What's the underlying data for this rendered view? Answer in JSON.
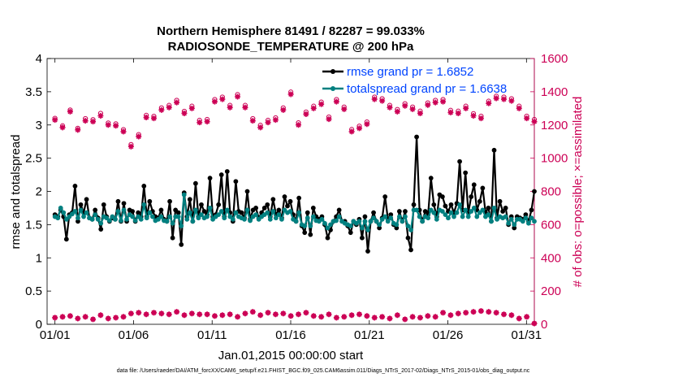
{
  "chart_data": {
    "type": "line",
    "title_line1": "Northern Hemisphere 81491 / 82287 = 99.033%",
    "title_line2": "RADIOSONDE_TEMPERATURE @ 200 hPa",
    "xlabel": "Jan.01,2015 00:00:00 start",
    "ylabel_left": "rmse and totalspread",
    "ylabel_right": "# of obs: o=possible; ×=assimilated",
    "footer": "data file: /Users/raeder/DAI/ATM_forcXX/CAM6_setup/f.e21.FHIST_BGC.f09_025.CAM6assim.011/Diags_NTrS_2017-02/Diags_NTrS_2015-01/obs_diag_output.nc",
    "xlim": [
      0.5,
      31.5
    ],
    "ylim_left": [
      0,
      4
    ],
    "ylim_right": [
      0,
      1600
    ],
    "x_ticks": [
      1,
      6,
      11,
      16,
      21,
      26,
      31
    ],
    "x_tick_labels": [
      "01/01",
      "01/06",
      "01/11",
      "01/16",
      "01/21",
      "01/26",
      "01/31"
    ],
    "y_left_ticks": [
      "0",
      "0.5",
      "1",
      "1.5",
      "2",
      "2.5",
      "3",
      "3.5",
      "4"
    ],
    "y_right_ticks": [
      "0",
      "200",
      "400",
      "600",
      "800",
      "1000",
      "1200",
      "1400",
      "1600"
    ],
    "colors": {
      "rmse": "#000000",
      "spread": "#008080",
      "obs": "#cc0055",
      "legend_text": "#0044ff"
    },
    "legend": [
      {
        "label": "rmse grand pr = 1.6852",
        "series": "rmse"
      },
      {
        "label": "totalspread grand pr = 1.6638",
        "series": "spread"
      }
    ],
    "series": [
      {
        "name": "rmse",
        "values": [
          1.65,
          1.62,
          1.72,
          1.62,
          1.28,
          1.65,
          1.68,
          2.08,
          1.55,
          1.8,
          1.68,
          1.88,
          1.6,
          1.58,
          1.72,
          1.6,
          1.43,
          1.8,
          1.62,
          1.55,
          1.6,
          1.58,
          1.85,
          1.55,
          1.82,
          1.55,
          1.72,
          1.7,
          1.55,
          1.68,
          1.62,
          2.08,
          1.62,
          1.85,
          1.7,
          1.62,
          1.6,
          1.72,
          1.58,
          1.55,
          1.85,
          1.3,
          1.72,
          1.68,
          1.2,
          1.98,
          1.62,
          1.88,
          1.55,
          2.12,
          1.62,
          1.8,
          1.7,
          1.65,
          2.2,
          1.62,
          1.65,
          1.8,
          2.25,
          1.62,
          2.3,
          1.68,
          1.55,
          2.15,
          1.7,
          1.68,
          1.6,
          2.0,
          1.58,
          1.72,
          1.75,
          1.6,
          1.68,
          1.75,
          1.8,
          1.62,
          1.88,
          1.65,
          1.72,
          1.6,
          1.92,
          1.78,
          1.85,
          1.65,
          1.55,
          1.9,
          1.48,
          1.38,
          1.68,
          1.35,
          1.75,
          1.62,
          1.58,
          1.62,
          1.5,
          1.3,
          1.42,
          1.55,
          1.62,
          1.72,
          1.55,
          1.55,
          1.48,
          1.38,
          1.55,
          1.5,
          1.58,
          1.3,
          1.62,
          1.1,
          1.55,
          1.68,
          1.55,
          1.45,
          1.6,
          1.92,
          1.58,
          1.65,
          1.5,
          1.45,
          1.7,
          1.55,
          1.7,
          1.3,
          1.12,
          1.8,
          2.82,
          1.72,
          1.55,
          1.7,
          1.65,
          2.2,
          1.8,
          1.62,
          1.95,
          1.92,
          1.78,
          1.7,
          1.8,
          1.68,
          1.82,
          2.45,
          1.72,
          2.28,
          1.68,
          1.92,
          2.1,
          1.72,
          1.85,
          2.05,
          1.68,
          1.75,
          1.55,
          2.62,
          1.6,
          1.85,
          1.7,
          1.75,
          1.5,
          1.62,
          1.45,
          1.62,
          1.6,
          1.58,
          1.65,
          1.55,
          1.72,
          2.0
        ]
      },
      {
        "name": "totalspread",
        "values": [
          1.62,
          1.6,
          1.75,
          1.68,
          1.58,
          1.62,
          1.66,
          1.7,
          1.6,
          1.72,
          1.62,
          1.68,
          1.6,
          1.58,
          1.65,
          1.58,
          1.52,
          1.62,
          1.6,
          1.56,
          1.62,
          1.58,
          1.7,
          1.56,
          1.72,
          1.58,
          1.65,
          1.62,
          1.56,
          1.62,
          1.58,
          1.8,
          1.6,
          1.68,
          1.62,
          1.56,
          1.58,
          1.62,
          1.56,
          1.55,
          1.62,
          1.52,
          1.62,
          1.62,
          1.48,
          1.95,
          1.58,
          1.68,
          1.55,
          1.72,
          1.6,
          1.65,
          1.6,
          1.62,
          1.75,
          1.58,
          1.62,
          1.65,
          1.7,
          1.6,
          1.72,
          1.62,
          1.58,
          1.68,
          1.62,
          1.6,
          1.58,
          1.72,
          1.56,
          1.62,
          1.65,
          1.58,
          1.62,
          1.65,
          1.68,
          1.58,
          1.7,
          1.6,
          1.65,
          1.58,
          1.72,
          1.68,
          1.7,
          1.58,
          1.55,
          1.68,
          1.5,
          1.48,
          1.6,
          1.48,
          1.62,
          1.56,
          1.55,
          1.58,
          1.52,
          1.45,
          1.5,
          1.55,
          1.56,
          1.62,
          1.55,
          1.52,
          1.5,
          1.48,
          1.55,
          1.52,
          1.55,
          1.45,
          1.55,
          1.42,
          1.55,
          1.6,
          1.55,
          1.5,
          1.58,
          1.62,
          1.55,
          1.6,
          1.52,
          1.5,
          1.62,
          1.55,
          1.62,
          1.48,
          1.42,
          1.72,
          1.72,
          1.62,
          1.55,
          1.62,
          1.6,
          1.72,
          1.68,
          1.58,
          1.72,
          1.7,
          1.65,
          1.6,
          1.68,
          1.62,
          1.68,
          1.8,
          1.62,
          1.72,
          1.62,
          1.7,
          1.75,
          1.62,
          1.68,
          1.72,
          1.62,
          1.65,
          1.55,
          1.75,
          1.58,
          1.62,
          1.6,
          1.62,
          1.52,
          1.58,
          1.5,
          1.58,
          1.58,
          1.55,
          1.6,
          1.52,
          1.6,
          1.55
        ]
      },
      {
        "name": "obs_assimilated_top",
        "values": [
          1230,
          1185,
          1280,
          1170,
          1225,
          1220,
          1255,
          1200,
          1195,
          1160,
          1070,
          1130,
          1245,
          1240,
          1290,
          1305,
          1335,
          1270,
          1300,
          1215,
          1220,
          1340,
          1355,
          1305,
          1370,
          1305,
          1225,
          1185,
          1215,
          1230,
          1290,
          1385,
          1200,
          1265,
          1300,
          1325,
          1235,
          1340,
          1295,
          1160,
          1180,
          1205,
          1355,
          1345,
          1305,
          1280,
          1315,
          1295,
          1270,
          1320,
          1335,
          1340,
          1275,
          1270,
          1300,
          1255,
          1240,
          1330,
          1360,
          1355,
          1345,
          1300,
          1240,
          1220
        ]
      },
      {
        "name": "obs_possible_top",
        "values": [
          1240,
          1195,
          1290,
          1180,
          1238,
          1232,
          1270,
          1212,
          1207,
          1172,
          1082,
          1142,
          1258,
          1252,
          1303,
          1318,
          1348,
          1282,
          1313,
          1228,
          1233,
          1353,
          1368,
          1318,
          1383,
          1318,
          1238,
          1198,
          1228,
          1243,
          1303,
          1398,
          1213,
          1278,
          1313,
          1338,
          1248,
          1353,
          1308,
          1173,
          1193,
          1218,
          1368,
          1358,
          1318,
          1293,
          1328,
          1308,
          1283,
          1333,
          1348,
          1353,
          1288,
          1283,
          1313,
          1268,
          1253,
          1343,
          1373,
          1368,
          1358,
          1313,
          1253,
          1233
        ]
      },
      {
        "name": "obs_bottom",
        "values": [
          40,
          45,
          50,
          35,
          45,
          30,
          55,
          35,
          40,
          45,
          65,
          70,
          60,
          70,
          65,
          60,
          75,
          55,
          65,
          60,
          60,
          50,
          55,
          60,
          45,
          65,
          75,
          55,
          70,
          60,
          65,
          50,
          60,
          70,
          50,
          45,
          60,
          40,
          45,
          55,
          60,
          50,
          40,
          45,
          35,
          55,
          30,
          45,
          40,
          50,
          45,
          70,
          55,
          65,
          70,
          75,
          80,
          75,
          70,
          60,
          55,
          35,
          45,
          5
        ]
      }
    ]
  }
}
